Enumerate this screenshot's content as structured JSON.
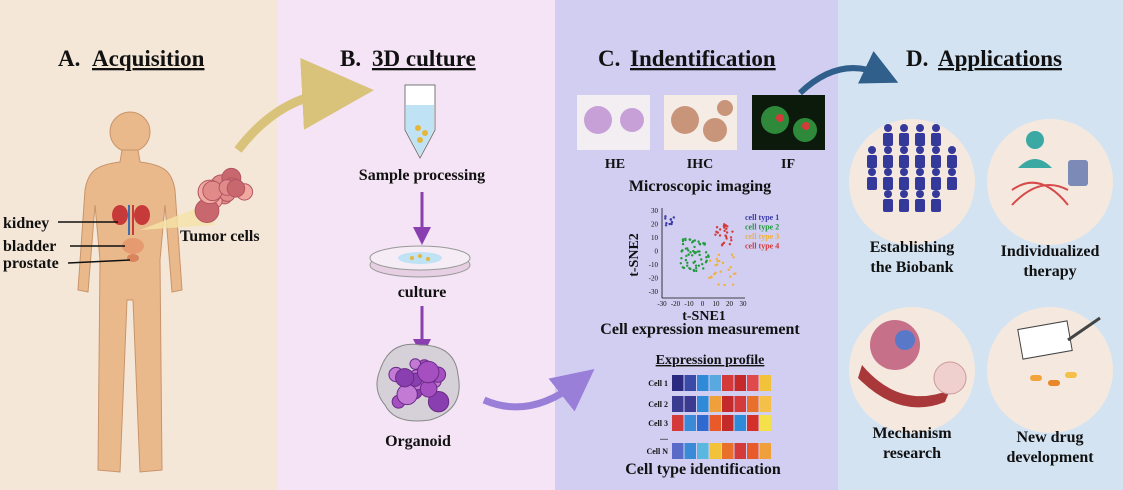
{
  "panels": [
    {
      "letter": "A.",
      "title": "Acquisition",
      "labels": {
        "kidney": "kidney",
        "bladder": "bladder",
        "prostate": "prostate",
        "tumor": "Tumor cells"
      }
    },
    {
      "letter": "B.",
      "title": "3D culture",
      "steps": [
        "Sample processing",
        "culture",
        "Organoid"
      ]
    },
    {
      "letter": "C.",
      "title": "Indentification",
      "stains": [
        "HE",
        "IHC",
        "IF"
      ],
      "imaging": "Microscopic imaging",
      "tsne": {
        "ylabel": "t-SNE2",
        "xlabel": "t-SNE1",
        "yticks": [
          30,
          20,
          10,
          0,
          -10,
          -20,
          -30
        ],
        "xticks": [
          -30,
          -20,
          -10,
          0,
          10,
          20,
          30
        ],
        "legend": [
          "cell type 1",
          "cell type 2",
          "cell type 3",
          "cell type 4"
        ]
      },
      "measurement": "Cell expression measurement",
      "profile_title": "Expression profile",
      "rows": [
        "Cell 1",
        "Cell 2",
        "Cell 3",
        "....",
        "Cell N"
      ],
      "identification": "Cell type identification"
    },
    {
      "letter": "D.",
      "title": "Applications",
      "items": [
        [
          "Establishing",
          "the Biobank"
        ],
        [
          "Individualized",
          "therapy"
        ],
        [
          "Mechanism",
          "research"
        ],
        [
          "New drug",
          "development"
        ]
      ]
    }
  ]
}
